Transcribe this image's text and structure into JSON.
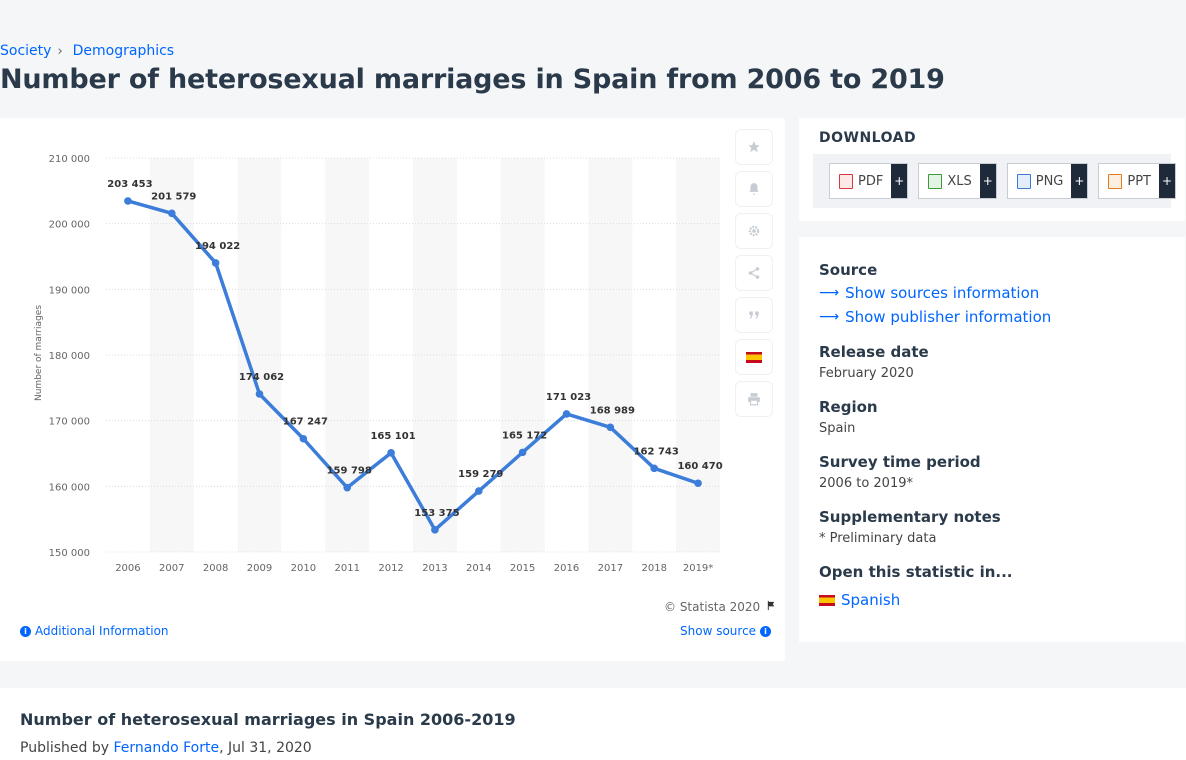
{
  "breadcrumb": {
    "items": [
      "Society",
      "Demographics"
    ]
  },
  "page_title": "Number of heterosexual marriages in Spain from 2006 to 2019",
  "chart_data": {
    "type": "line",
    "title": "",
    "xlabel": "",
    "ylabel": "Number of marriages",
    "categories": [
      "2006",
      "2007",
      "2008",
      "2009",
      "2010",
      "2011",
      "2012",
      "2013",
      "2014",
      "2015",
      "2016",
      "2017",
      "2018",
      "2019*"
    ],
    "values": [
      203453,
      201579,
      194022,
      174062,
      167247,
      159798,
      165101,
      153375,
      159279,
      165172,
      171023,
      168989,
      162743,
      160470
    ],
    "value_labels": [
      "203 453",
      "201 579",
      "194 022",
      "174 062",
      "167 247",
      "159 798",
      "165 101",
      "153 375",
      "159 279",
      "165 172",
      "171 023",
      "168 989",
      "162 743",
      "160 470"
    ],
    "ylim": [
      150000,
      210000
    ],
    "yticks": [
      150000,
      160000,
      170000,
      180000,
      190000,
      200000,
      210000
    ],
    "ytick_labels": [
      "150 000",
      "160 000",
      "170 000",
      "180 000",
      "190 000",
      "200 000",
      "210 000"
    ],
    "grid": true,
    "line_color": "#3b7dd8"
  },
  "chart_footer": {
    "copyright": "© Statista 2020",
    "additional_info": "Additional Information",
    "show_source": "Show source"
  },
  "tools": [
    "star-icon",
    "bell-icon",
    "gear-icon",
    "share-icon",
    "quote-icon",
    "flag-spain-icon",
    "print-icon"
  ],
  "download": {
    "title": "DOWNLOAD",
    "buttons": [
      {
        "label": "PDF",
        "icon": "pdf-icon",
        "color": "#d9363e"
      },
      {
        "label": "XLS",
        "icon": "xls-icon",
        "color": "#3a9b3a"
      },
      {
        "label": "PNG",
        "icon": "png-icon",
        "color": "#3a7bd5"
      },
      {
        "label": "PPT",
        "icon": "ppt-icon",
        "color": "#e07b22"
      }
    ]
  },
  "info": {
    "source_label": "Source",
    "show_sources": "Show sources information",
    "show_publisher": "Show publisher information",
    "release_label": "Release date",
    "release_value": "February 2020",
    "region_label": "Region",
    "region_value": "Spain",
    "survey_label": "Survey time period",
    "survey_value": "2006 to 2019*",
    "notes_label": "Supplementary notes",
    "notes_value": "* Preliminary data",
    "open_label": "Open this statistic in...",
    "open_lang": "Spanish"
  },
  "bottom": {
    "title": "Number of heterosexual marriages in Spain 2006-2019",
    "published_prefix": "Published by",
    "author": "Fernando Forte",
    "date": ", Jul 31, 2020"
  }
}
